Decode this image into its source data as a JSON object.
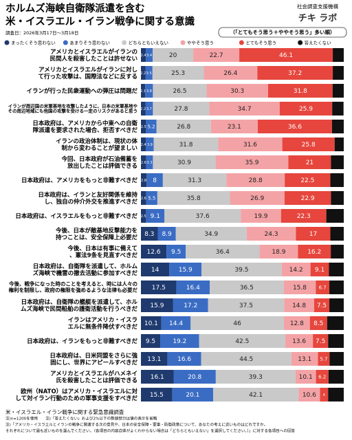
{
  "header": {
    "title_lines": [
      "ホルムズ海峡自衛隊派遣を含む",
      "米・イスラエル・イラン戦争に関する意識"
    ],
    "survey_date": "調査日：2026年3月17日〜3月18日",
    "org": "社会調査支援機構",
    "brand": "チキ ラボ",
    "sort_note": "（「とてもそう思う＋ややそう思う」多い順）"
  },
  "chart_data": {
    "type": "stacked-bar-horizontal",
    "xlim": [
      0,
      100
    ],
    "categories": [
      "アメリカとイスラエルがイランの民間人を殺害したことは許せない",
      "アメリカとイスラエルがイランに対して行った攻撃は、国際法などに反する",
      "イランが行った民衆運動への弾圧は問題だ",
      "イランが周辺国の米軍基地を攻撃したように、日本の米軍基地やその周辺地域にも他国の攻撃を受ける一定のリスクがあると思う",
      "日本政府は、アメリカから中東への自衛隊派遣を要求された場合、拒否すべきだ",
      "イランの政治体制は、現状の体制から変わることが望ましい",
      "今回、日本政府が石油備蓄を放出したことは評価できる",
      "日本政府は、アメリカをもっと非難すべきだ",
      "日本政府は、イランと友好関係を維持し、独自の仲介外交を推進すべきだ",
      "日本政府は、イスラエルをもっと非難すべきだ",
      "今後、日本が敵基地反撃能力を持つことは、安全保障上必要だ",
      "今後、日本は有事に備えて、憲法9条を見直すべきだ",
      "日本政府は、自衛隊を派遣して、ホルムズ海峡で機雷の撤去活動に参加すべきだ",
      "今後、戦争になった時のことを考えると、時には人々の権利を制限し、政府の権限を強めるような法律も必要だ",
      "日本政府は、自衛隊の艦艇を派遣して、ホルムズ海峡で民間船舶の護衛活動を行うべきだ",
      "イランはアメリカ・イスラエルに無条件降伏すべきだ",
      "日本政府は、イランをもっと非難すべきだ",
      "日本政府は、日米同盟をさらに強固にし、世界にアピールすべきだ",
      "アメリカとイスラエルがハメネイ氏を殺害したことは評価できる",
      "欧州（NATO）はアメリカ・イスラエルに対して対イラン行動のための軍事支援をすべきだ"
    ],
    "series": [
      {
        "name": "まったくそう思わない",
        "color": "#1f3a6e",
        "values": [
          2.4,
          2.2,
          2.1,
          2.2,
          2.5,
          2.4,
          2.6,
          2.8,
          2.6,
          2.5,
          8.3,
          12.6,
          14,
          17.5,
          15.9,
          10.1,
          9.5,
          13.1,
          16.1,
          15.5
        ]
      },
      {
        "name": "あまりそう思わない",
        "color": "#3a6cc4",
        "values": [
          3.4,
          3.5,
          3.8,
          3.7,
          5.2,
          3.9,
          3.3,
          8,
          5.5,
          9.1,
          8.9,
          9.5,
          15.9,
          16.4,
          17.2,
          14.4,
          19.2,
          16.6,
          20.8,
          20.1
        ]
      },
      {
        "name": "どちらともいえない",
        "color": "#c9c9c9",
        "values": [
          20,
          25.3,
          26.5,
          27.8,
          26.8,
          31.8,
          30.9,
          31.3,
          35.8,
          37.6,
          34.9,
          36.4,
          39.5,
          36.5,
          37.5,
          46,
          42.5,
          44.5,
          39.3,
          42.1
        ]
      },
      {
        "name": "ややそう思う",
        "color": "#f3a3a6",
        "values": [
          22.7,
          26.4,
          30.3,
          34.7,
          23.1,
          31.6,
          35.9,
          28.8,
          26.9,
          19.9,
          24.3,
          18.9,
          14.2,
          15.8,
          14.8,
          12.8,
          13.6,
          13.1,
          10.1,
          10.6
        ]
      },
      {
        "name": "とてもそう思う",
        "color": "#e6463d",
        "values": [
          46.1,
          37.2,
          31.8,
          25.9,
          36.6,
          25.8,
          21,
          22.5,
          22.9,
          22.3,
          17,
          16.2,
          9.1,
          6.7,
          7.5,
          8.5,
          7.5,
          5.7,
          6.2,
          4.0
        ]
      },
      {
        "name": "答えたくない",
        "color": "#111111",
        "values": [
          5.4,
          5.4,
          5.5,
          5.6,
          5.8,
          4.5,
          6.3,
          6.6,
          6.3,
          8.6,
          6.6,
          6.4,
          7.3,
          7.1,
          7.1,
          8.2,
          7.7,
          7.0,
          7.5,
          7.7
        ]
      }
    ]
  },
  "footer": {
    "lines": [
      "米・イスラエル・イラン戦争に関する緊急意識調査",
      "注)n=1200を使用　　注)「答えたくない」および2%以下の数値部分は値の表示を省略",
      "注)「アメリカ・イスラエルとイランの戦争に関連する次の意見や、日本の安全保障・軍事・防衛政策について、あなたの考えに近いものはどれですか。",
      "それぞれについて最も近いものを選んでください。（各項目の内容自体がよくわからない場合は「どちらともいえない」を選択してください。）」に対する各項目への回答"
    ]
  }
}
